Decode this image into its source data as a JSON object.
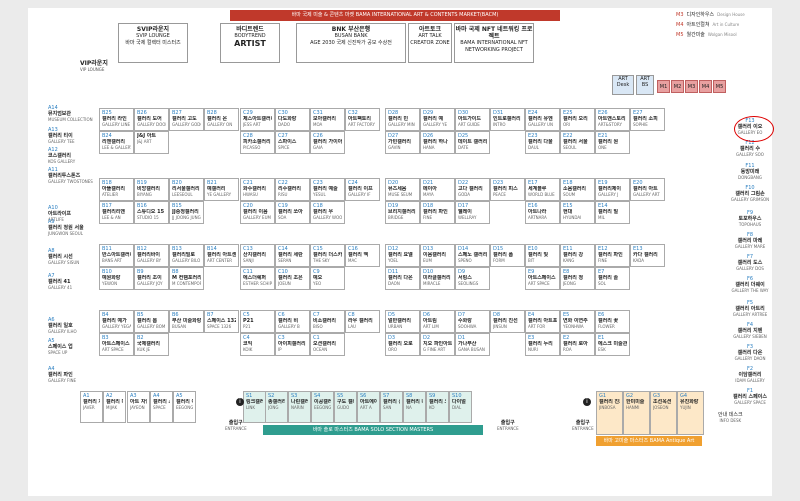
{
  "banners": {
    "top": "바마 국제 미술 & 콘텐츠 마켓 BAMA INTERNATIONAL ART & CONTENTS MARKET(BACM)",
    "masters": "바마 솔로 마스터즈 BAMA SOLO SECTION MASTERS",
    "antique": "바마 고미술 마스터즈 BAMA Antique Art"
  },
  "top_booths": [
    {
      "title": "SVIP라운지",
      "sub": "SVIP LOUNGE",
      "body": "바마 국제 컬렉터 미스터즈"
    },
    {
      "title": "바디트렌드",
      "sub": "BODYTREND",
      "body": "ARTIST"
    },
    {
      "title": "BNK 부산은행",
      "sub": "BUSAN BANK",
      "body": "AGE 2030 국제 신진작가 공모 수상전"
    },
    {
      "title": "아트토크",
      "sub": "ART TALK",
      "body": "CREATOR ZONE"
    },
    {
      "title": "바마 국제 NFT 네트워킹 프로젝트",
      "sub": "BAMA INTERNATIONAL NFT NETWORKING PROJECT",
      "body": ""
    }
  ],
  "vip": {
    "title": "VIP라운지",
    "sub": "VIP LOUNGE"
  },
  "legend": [
    {
      "code": "M3",
      "ko": "디자인하우스",
      "en": "Design House"
    },
    {
      "code": "M4",
      "ko": "아트인컬쳐",
      "en": "Art in Culture"
    },
    {
      "code": "M5",
      "ko": "월간미술",
      "en": "Wolgan Misool"
    }
  ],
  "minibooths": [
    "M1",
    "M2",
    "M3",
    "M4",
    "M5"
  ],
  "artdesk": [
    "ART Desk",
    "ART BS"
  ],
  "left_side": [
    {
      "code": "A14",
      "name": "뮤지엄보관",
      "en": "MUSEUM COLLECTION"
    },
    {
      "code": "A13",
      "name": "갤러리 티이",
      "en": "GALLERY TEE"
    },
    {
      "code": "A12",
      "name": "코스갤러리",
      "en": "KOS GALLERY"
    },
    {
      "code": "A11",
      "name": "갤러리투스톤즈",
      "en": "GALLERY TWOSTONES"
    },
    {
      "code": "A10",
      "name": "아트라이프",
      "en": "ARTLIFE"
    },
    {
      "code": "A9",
      "name": "갤러리 정원 서울",
      "en": "JUNGWON SEOUL"
    },
    {
      "code": "A8",
      "name": "갤러리 시선",
      "en": "GALLERY SISUN"
    },
    {
      "code": "A7",
      "name": "갤러리 41",
      "en": "GALLERY 41"
    },
    {
      "code": "A6",
      "name": "갤러리 일호",
      "en": "GALLERY ILHO"
    },
    {
      "code": "A5",
      "name": "스페이스 업",
      "en": "SPACE UP"
    },
    {
      "code": "A4",
      "name": "갤러리 파인",
      "en": "GALLERY FINE"
    }
  ],
  "right_side": [
    {
      "code": "F13",
      "name": "갤러리 이오",
      "en": "GALLERY EO"
    },
    {
      "code": "F12",
      "name": "갤러리 수",
      "en": "GALLERY SOO"
    },
    {
      "code": "F11",
      "name": "동방미래",
      "en": "DONGBANG"
    },
    {
      "code": "F10",
      "name": "갤러리 그림손",
      "en": "GALLERY GRIMSON"
    },
    {
      "code": "F9",
      "name": "토포하우스",
      "en": "TOPOHAUS"
    },
    {
      "code": "F8",
      "name": "갤러리 마레",
      "en": "GALLERY MARE"
    },
    {
      "code": "F7",
      "name": "갤러리 도스",
      "en": "GALLERY DOS"
    },
    {
      "code": "F6",
      "name": "갤러리 더웨이",
      "en": "GALLERY THE WAY"
    },
    {
      "code": "F5",
      "name": "갤러리 아트리",
      "en": "GALLERY ARTREE"
    },
    {
      "code": "F4",
      "name": "갤러리 지벤",
      "en": "GALLERY SIEBEN"
    },
    {
      "code": "F3",
      "name": "갤러리 다온",
      "en": "GALLERY DAON"
    },
    {
      "code": "F2",
      "name": "이담갤러리",
      "en": "IDAM GALLERY"
    },
    {
      "code": "F1",
      "name": "갤러리 스페이스",
      "en": "GALLERY SPACE"
    }
  ],
  "blocks": [
    {
      "id": "b",
      "cells": [
        {
          "code": "B25",
          "name": "갤러리 라인",
          "en": "GALLERY LINE"
        },
        {
          "code": "B26",
          "name": "갤러리 도어",
          "en": "GALLERY DOOR"
        },
        {
          "code": "B27",
          "name": "갤러리 고도",
          "en": "GALLERY GODO"
        },
        {
          "code": "B28",
          "name": "갤러리 온",
          "en": "GALLERY ON"
        },
        {
          "code": "B24",
          "name": "리앤갤러리",
          "en": "LEE & GALLERY"
        },
        {
          "code": "",
          "name": "J&J 아트",
          "en": "J&J ART"
        },
        {
          "code": "",
          "name": "",
          "en": ""
        },
        {
          "code": "",
          "name": "",
          "en": ""
        },
        {
          "code": "B18",
          "name": "아뜰갤러리",
          "en": "ATELIER"
        },
        {
          "code": "B19",
          "name": "비앙갤러리",
          "en": "BIYANG"
        },
        {
          "code": "B20",
          "name": "리서울갤러리",
          "en": "LEESEOUL"
        },
        {
          "code": "B21",
          "name": "예갤러리",
          "en": "YE GALLERY"
        },
        {
          "code": "B17",
          "name": "갤러리리앤",
          "en": "LEE & AN"
        },
        {
          "code": "B16",
          "name": "스튜디오 15",
          "en": "STUDIO 15"
        },
        {
          "code": "B15",
          "name": "JJ중정갤러리",
          "en": "JJ JOONG JUNG"
        },
        {
          "code": "",
          "name": "",
          "en": ""
        },
        {
          "code": "B11",
          "name": "반스아트갤러리",
          "en": "BANS ART"
        },
        {
          "code": "B12",
          "name": "갤러리바이",
          "en": "GALLERY BY"
        },
        {
          "code": "B13",
          "name": "갤러리빌로",
          "en": "GALLERY BILO"
        },
        {
          "code": "B14",
          "name": "갤러리 아트센터",
          "en": "ART CENTER"
        },
        {
          "code": "B10",
          "name": "예원화랑",
          "en": "YEWON"
        },
        {
          "code": "B9",
          "name": "갤러리 조이",
          "en": "GALLERY JOY"
        },
        {
          "code": "B8",
          "name": "M 컨템포러리",
          "en": "M CONTEMPORARY"
        },
        {
          "code": "",
          "name": "",
          "en": ""
        },
        {
          "code": "B4",
          "name": "갤러리 예가",
          "en": "GALLERY YEGA"
        },
        {
          "code": "B5",
          "name": "갤러리 봄",
          "en": "GALLERY BOM"
        },
        {
          "code": "B6",
          "name": "부산 미술화랑",
          "en": "BUSAN"
        },
        {
          "code": "B7",
          "name": "스페이스 1326",
          "en": "SPACE 1326"
        },
        {
          "code": "B3",
          "name": "아트스페이스",
          "en": "ART SPACE"
        },
        {
          "code": "B2",
          "name": "국제갤러리",
          "en": "KUK JE"
        },
        {
          "code": "",
          "name": "",
          "en": ""
        },
        {
          "code": "",
          "name": "",
          "en": ""
        }
      ]
    },
    {
      "id": "c",
      "cells": [
        {
          "code": "C29",
          "name": "제스아트갤러리",
          "en": "JESS ART"
        },
        {
          "code": "C30",
          "name": "다도화랑",
          "en": "DADO"
        },
        {
          "code": "C31",
          "name": "모아갤러리",
          "en": "MOA"
        },
        {
          "code": "C32",
          "name": "아트팩토리",
          "en": "ART FACTORY"
        },
        {
          "code": "C28",
          "name": "피카소갤러리",
          "en": "PICASSO"
        },
        {
          "code": "C27",
          "name": "스파이스",
          "en": "SPICE"
        },
        {
          "code": "C26",
          "name": "갤러리 가이아",
          "en": "GAIA"
        },
        {
          "code": "",
          "name": "",
          "en": ""
        },
        {
          "code": "C21",
          "name": "화수갤러리",
          "en": "HWASU"
        },
        {
          "code": "C22",
          "name": "리수갤러리",
          "en": "RISU"
        },
        {
          "code": "C23",
          "name": "갤러리 예술",
          "en": "YESUL"
        },
        {
          "code": "C24",
          "name": "갤러리 이프",
          "en": "GALLERY IF"
        },
        {
          "code": "C20",
          "name": "갤러리 이음",
          "en": "GALLERY EUM"
        },
        {
          "code": "C19",
          "name": "갤러리 쏘아",
          "en": "SOA"
        },
        {
          "code": "C18",
          "name": "갤러리 우",
          "en": "GALLERY WOO"
        },
        {
          "code": "",
          "name": "",
          "en": ""
        },
        {
          "code": "C13",
          "name": "산지갤러리",
          "en": "SANJI"
        },
        {
          "code": "C14",
          "name": "갤러리 세란",
          "en": "SERAN"
        },
        {
          "code": "C15",
          "name": "갤러리 더스카이",
          "en": "THE SKY"
        },
        {
          "code": "C16",
          "name": "갤러리 맥",
          "en": "MAC"
        },
        {
          "code": "C11",
          "name": "에스더쉐퍼",
          "en": "ESTHER SCHIPPER"
        },
        {
          "code": "C10",
          "name": "갤러리 조은",
          "en": "JOEUN"
        },
        {
          "code": "C9",
          "name": "예오",
          "en": "YEO"
        },
        {
          "code": "",
          "name": "",
          "en": ""
        },
        {
          "code": "C5",
          "name": "P21",
          "en": "P21"
        },
        {
          "code": "C6",
          "name": "갤러리 비",
          "en": "GALLERY B"
        },
        {
          "code": "C7",
          "name": "비소갤러리",
          "en": "BISO"
        },
        {
          "code": "C8",
          "name": "라우 갤러리",
          "en": "LAU"
        },
        {
          "code": "C4",
          "name": "코익",
          "en": "KOIK"
        },
        {
          "code": "C3",
          "name": "아이피갤러리",
          "en": "IP"
        },
        {
          "code": "C1",
          "name": "오션갤러리",
          "en": "OCEAN"
        },
        {
          "code": "",
          "name": "",
          "en": ""
        }
      ]
    },
    {
      "id": "d",
      "cells": [
        {
          "code": "D28",
          "name": "갤러리 민",
          "en": "GALLERY MIN"
        },
        {
          "code": "D29",
          "name": "갤러리 예",
          "en": "GALLERY YE"
        },
        {
          "code": "D30",
          "name": "아트가이드",
          "en": "ART GUIDE"
        },
        {
          "code": "D31",
          "name": "인트로갤러리",
          "en": "INTRO"
        },
        {
          "code": "D27",
          "name": "가빈갤러리",
          "en": "GAVIN"
        },
        {
          "code": "D26",
          "name": "갤러리 하나",
          "en": "HANA"
        },
        {
          "code": "D25",
          "name": "데이트 갤러리",
          "en": "DATE"
        },
        {
          "code": "",
          "name": "",
          "en": ""
        },
        {
          "code": "D20",
          "name": "뮤즈세움",
          "en": "MUSE SEUM"
        },
        {
          "code": "D21",
          "name": "메이아",
          "en": "MAYA"
        },
        {
          "code": "D22",
          "name": "고다 갤러리",
          "en": "GODA"
        },
        {
          "code": "D23",
          "name": "갤러리 피스",
          "en": "PEACE"
        },
        {
          "code": "D19",
          "name": "브리지갤러리",
          "en": "BRIDGE"
        },
        {
          "code": "D18",
          "name": "갤러리 파인",
          "en": "FINE"
        },
        {
          "code": "D17",
          "name": "웰레이",
          "en": "WELLRAY"
        },
        {
          "code": "",
          "name": "",
          "en": ""
        },
        {
          "code": "D12",
          "name": "갤러리 요엘",
          "en": "YOEL"
        },
        {
          "code": "D13",
          "name": "이음갤러리",
          "en": "EUM"
        },
        {
          "code": "D14",
          "name": "스페노 갤러리",
          "en": "SPENO"
        },
        {
          "code": "D15",
          "name": "갤러리 폼",
          "en": "FORM"
        },
        {
          "code": "D11",
          "name": "갤러리 다온",
          "en": "DAON"
        },
        {
          "code": "D10",
          "name": "미라클갤러리",
          "en": "MIRACLE"
        },
        {
          "code": "D9",
          "name": "서링스",
          "en": "SEOLINGS"
        },
        {
          "code": "",
          "name": "",
          "en": ""
        },
        {
          "code": "D5",
          "name": "얼반갤러리",
          "en": "URBAN"
        },
        {
          "code": "D6",
          "name": "아트림",
          "en": "ART LIM"
        },
        {
          "code": "D7",
          "name": "수화랑",
          "en": "SOOHWA"
        },
        {
          "code": "D8",
          "name": "갤러리 진선",
          "en": "JINSUN"
        },
        {
          "code": "D3",
          "name": "갤러리 오로",
          "en": "ORO"
        },
        {
          "code": "D2",
          "name": "지오 파인아트",
          "en": "G FINE ART"
        },
        {
          "code": "D1",
          "name": "가나부산",
          "en": "GANA BUSAN"
        },
        {
          "code": "",
          "name": "",
          "en": ""
        }
      ]
    },
    {
      "id": "e",
      "cells": [
        {
          "code": "E24",
          "name": "갤러리 유엔",
          "en": "GALLERY UN"
        },
        {
          "code": "E25",
          "name": "갤러리 오리",
          "en": "ORI"
        },
        {
          "code": "E26",
          "name": "아트앤스토리",
          "en": "ART&STORY"
        },
        {
          "code": "E27",
          "name": "갤러리 소피",
          "en": "SOPHIE"
        },
        {
          "code": "E23",
          "name": "갤러리 다울",
          "en": "DAUL"
        },
        {
          "code": "E22",
          "name": "갤러리 서울",
          "en": "SEOUL"
        },
        {
          "code": "E21",
          "name": "갤러리 원",
          "en": "ONE"
        },
        {
          "code": "",
          "name": "",
          "en": ""
        },
        {
          "code": "E17",
          "name": "세계블루",
          "en": "WORLD BLUE"
        },
        {
          "code": "E18",
          "name": "소움갤러리",
          "en": "SOUM"
        },
        {
          "code": "E19",
          "name": "갤러리제이",
          "en": "GALLERY J"
        },
        {
          "code": "E20",
          "name": "갤러리 아트",
          "en": "GALLERY ART"
        },
        {
          "code": "E16",
          "name": "아트나라",
          "en": "ARTNARA"
        },
        {
          "code": "E15",
          "name": "현대",
          "en": "HYUNDAI"
        },
        {
          "code": "E14",
          "name": "갤러리 밀",
          "en": "MIL"
        },
        {
          "code": "",
          "name": "",
          "en": ""
        },
        {
          "code": "E10",
          "name": "갤러리 빛",
          "en": "BIT"
        },
        {
          "code": "E11",
          "name": "갤러리 강",
          "en": "KANG"
        },
        {
          "code": "E12",
          "name": "갤러리 파인",
          "en": "FINE"
        },
        {
          "code": "E13",
          "name": "카다 갤러리",
          "en": "KADA"
        },
        {
          "code": "E9",
          "name": "아트스페이스",
          "en": "ART SPACE"
        },
        {
          "code": "E8",
          "name": "갤러리 정",
          "en": "JEONG"
        },
        {
          "code": "E7",
          "name": "갤러리 솔",
          "en": "SOL"
        },
        {
          "code": "",
          "name": "",
          "en": ""
        },
        {
          "code": "E4",
          "name": "갤러리 아트포",
          "en": "ART FOR"
        },
        {
          "code": "E5",
          "name": "연화 이연주",
          "en": "YEONHWA"
        },
        {
          "code": "E6",
          "name": "갤러리 꽃",
          "en": "FLOWER"
        },
        {
          "code": "",
          "name": "",
          "en": ""
        },
        {
          "code": "E3",
          "name": "갤러리 누리",
          "en": "NURI"
        },
        {
          "code": "E2",
          "name": "갤러리 로아",
          "en": "ROA"
        },
        {
          "code": "E1",
          "name": "에스크 미술관",
          "en": "ESK"
        },
        {
          "code": "",
          "name": "",
          "en": ""
        }
      ]
    }
  ],
  "masters": [
    {
      "code": "A1",
      "name": "갤러리 자베르",
      "en": "JAVER"
    },
    {
      "code": "A2",
      "name": "갤러리 미작",
      "en": "MIJAK"
    },
    {
      "code": "A3",
      "name": "아트 자연지",
      "en": "JAYEON"
    },
    {
      "code": "A4",
      "name": "갤러리 스페이스",
      "en": "SPACE"
    },
    {
      "code": "A5",
      "name": "갤러리 이공",
      "en": "EEGONG"
    },
    {
      "code": "S1",
      "name": "링크갤러리",
      "en": "LINK"
    },
    {
      "code": "S2",
      "name": "종갤러리",
      "en": "JONG"
    },
    {
      "code": "S3",
      "name": "나린갤러리",
      "en": "NARIN"
    },
    {
      "code": "S4",
      "name": "이공갤러리",
      "en": "EEGONG"
    },
    {
      "code": "S5",
      "name": "구도 갤러리",
      "en": "GUDO"
    },
    {
      "code": "S6",
      "name": "아트에이",
      "en": "ART A"
    },
    {
      "code": "S7",
      "name": "갤러리 산",
      "en": "SAN"
    },
    {
      "code": "S8",
      "name": "갤러리 나",
      "en": "NA"
    },
    {
      "code": "S9",
      "name": "갤러리 코",
      "en": "KO"
    },
    {
      "code": "S10",
      "name": "다이얼",
      "en": "DIAL"
    }
  ],
  "antique": [
    {
      "code": "G1",
      "name": "갤러리 진보사",
      "en": "JINBOSA"
    },
    {
      "code": "G2",
      "name": "한미미술",
      "en": "HANMI"
    },
    {
      "code": "G3",
      "name": "조선옥션",
      "en": "JOSEON"
    },
    {
      "code": "G4",
      "name": "유진화랑",
      "en": "YUJIN"
    }
  ],
  "entrances": [
    {
      "ko": "출입구",
      "en": "ENTRANCE"
    },
    {
      "ko": "출입구",
      "en": "ENTRANCE"
    },
    {
      "ko": "출입구",
      "en": "ENTRANCE"
    }
  ],
  "infodesk": {
    "ko": "안내 데스크",
    "en": "INFO DESK"
  }
}
